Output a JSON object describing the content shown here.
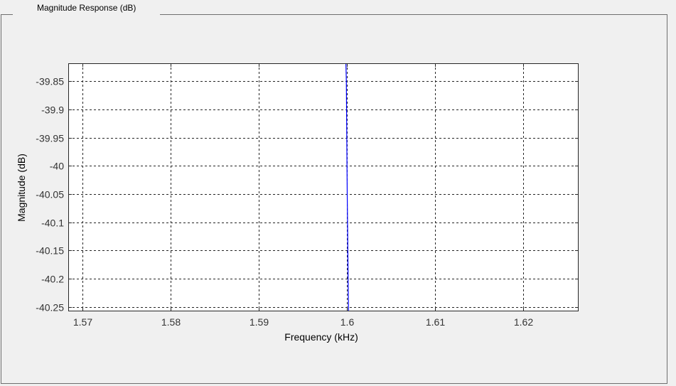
{
  "panel": {
    "title": "Magnitude Response (dB)"
  },
  "chart_data": {
    "type": "line",
    "title": "",
    "xlabel": "Frequency (kHz)",
    "ylabel": "Magnitude (dB)",
    "xlim": [
      1.5684,
      1.6263
    ],
    "ylim": [
      -40.258,
      -39.818
    ],
    "xticks": [
      1.57,
      1.58,
      1.59,
      1.6,
      1.61,
      1.62
    ],
    "xtick_labels": [
      "1.57",
      "1.58",
      "1.59",
      "1.6",
      "1.61",
      "1.62"
    ],
    "yticks": [
      -39.85,
      -39.9,
      -39.95,
      -40,
      -40.05,
      -40.1,
      -40.15,
      -40.2,
      -40.25
    ],
    "ytick_labels": [
      "-39.85",
      "-39.9",
      "-39.95",
      "-40",
      "-40.05",
      "-40.1",
      "-40.15",
      "-40.2",
      "-40.25"
    ],
    "grid": true,
    "series": [
      {
        "color": "#0000ff",
        "x": [
          1.5999,
          1.59995,
          1.6,
          1.60005,
          1.6001,
          1.60015,
          1.6002
        ],
        "y": [
          -39.8,
          -39.85,
          -39.95,
          -40.05,
          -40.12,
          -40.2,
          -40.27
        ]
      }
    ],
    "colors": {
      "line": "#0000ff",
      "grid": "#262626",
      "axes_bg": "#ffffff",
      "axes_border": "#262626"
    }
  }
}
